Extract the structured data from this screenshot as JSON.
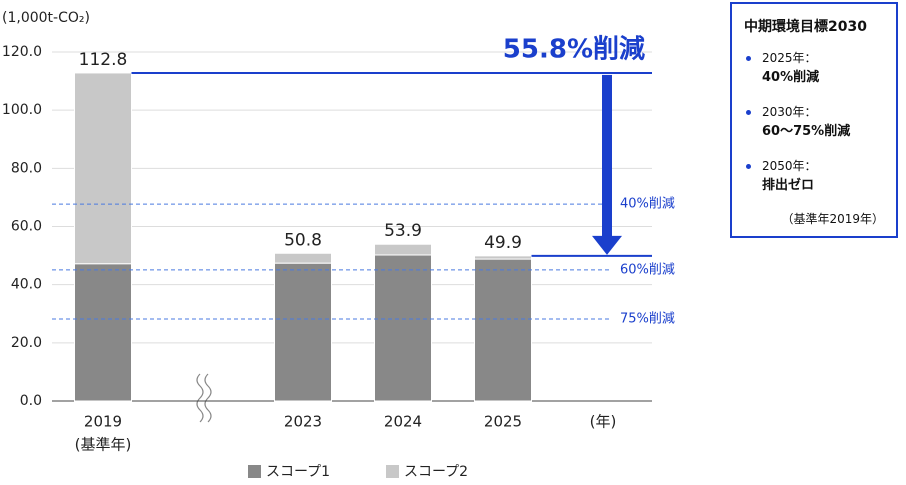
{
  "chart_data": {
    "type": "bar",
    "stacked": true,
    "y_axis_label": "(1,000t-CO₂)",
    "x_axis_label": "(年)",
    "categories": [
      "2019",
      "2023",
      "2024",
      "2025"
    ],
    "baseline_note": "(基準年)",
    "series": [
      {
        "name": "スコープ1",
        "color": "#888888",
        "values": [
          47.2,
          47.4,
          50.2,
          48.8
        ]
      },
      {
        "name": "スコープ2",
        "color": "#c8c8c8",
        "values": [
          65.6,
          3.4,
          3.7,
          1.1
        ]
      }
    ],
    "totals": [
      112.8,
      50.8,
      53.9,
      49.9
    ],
    "ylim": [
      0,
      120
    ],
    "yticks": [
      {
        "value": 0,
        "label": "0.0"
      },
      {
        "value": 20,
        "label": "20.0"
      },
      {
        "value": 40,
        "label": "40.0"
      },
      {
        "value": 60,
        "label": "60.0"
      },
      {
        "value": 80,
        "label": "80.0"
      },
      {
        "value": 100,
        "label": "100.0"
      },
      {
        "value": 120,
        "label": "120.0"
      }
    ],
    "grid": true,
    "reference_lines": [
      {
        "value": 67.7,
        "label": "40%削減"
      },
      {
        "value": 45.1,
        "label": "60%削減"
      },
      {
        "value": 28.2,
        "label": "75%削減"
      }
    ],
    "reduction_label": "55.8%削減",
    "accent_color": "#1a3fcc"
  },
  "target_box": {
    "title": "中期環境目標2030",
    "items": [
      {
        "year": "2025年：",
        "goal": "40%削減"
      },
      {
        "year": "2030年：",
        "goal": "60〜75%削減"
      },
      {
        "year": "2050年：",
        "goal": "排出ゼロ"
      }
    ],
    "note": "（基準年2019年）"
  }
}
